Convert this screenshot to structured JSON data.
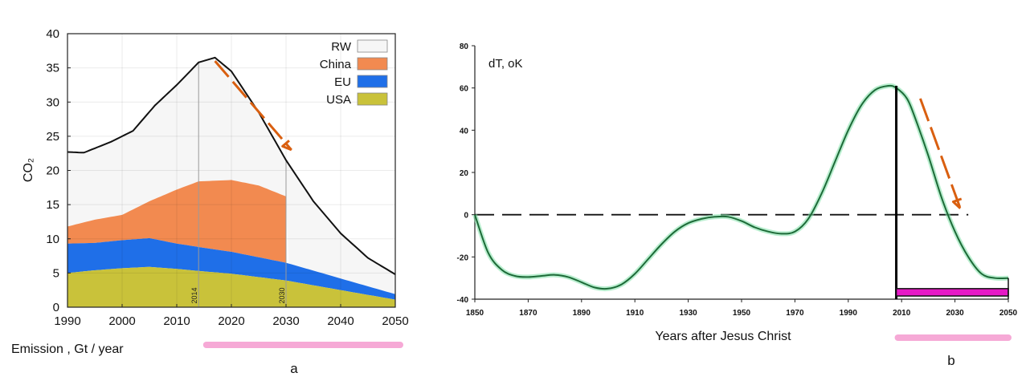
{
  "colors": {
    "rw": "#f6f6f6",
    "china": "#f28a50",
    "eu": "#1f6fe8",
    "usa": "#c9c23a",
    "curve_a": "#111111",
    "curve_b": "#1d6b38",
    "curve_b_glow": "#7fe0a8",
    "arrow": "#d95f10",
    "pink": "#f6a9d6",
    "magenta": "#e619c6"
  },
  "panels": {
    "a": {
      "panel_label": "a",
      "caption": "Emission , Gt / year",
      "ylabel": "CO₂",
      "vmarker_labels": [
        "2014",
        "2030"
      ]
    },
    "b": {
      "panel_label": "b",
      "ylabel": "dT, oK",
      "xlabel": "Years after Jesus Christ"
    }
  },
  "chart_data": [
    {
      "type": "area",
      "title": "",
      "xlabel": "",
      "ylabel": "CO₂",
      "xlim": [
        1990,
        2050
      ],
      "ylim": [
        0,
        40
      ],
      "x_ticks": [
        1990,
        2000,
        2010,
        2020,
        2030,
        2040,
        2050
      ],
      "y_ticks": [
        0,
        5,
        10,
        15,
        20,
        25,
        30,
        35,
        40
      ],
      "grid": true,
      "legend": {
        "placement": "top-right",
        "entries": [
          "RW",
          "China",
          "EU",
          "USA"
        ]
      },
      "vertical_markers": [
        2014,
        2030
      ],
      "series": [
        {
          "name": "USA",
          "x": [
            1990,
            1995,
            2000,
            2005,
            2010,
            2014,
            2020,
            2030,
            2040,
            2050
          ],
          "values": [
            5.0,
            5.4,
            5.7,
            5.9,
            5.6,
            5.3,
            4.9,
            3.9,
            2.5,
            1.1
          ]
        },
        {
          "name": "EU",
          "x": [
            1990,
            1995,
            2000,
            2005,
            2010,
            2014,
            2020,
            2030,
            2040,
            2050
          ],
          "values": [
            9.3,
            9.4,
            9.8,
            10.1,
            9.3,
            8.8,
            8.1,
            6.5,
            4.2,
            1.9
          ]
        },
        {
          "name": "China",
          "x": [
            1990,
            1995,
            2000,
            2005,
            2010,
            2014,
            2020,
            2025,
            2030
          ],
          "values": [
            11.8,
            12.8,
            13.5,
            15.5,
            17.2,
            18.4,
            18.6,
            17.8,
            16.2
          ]
        },
        {
          "name": "RW",
          "x": [
            1990,
            1993,
            1998,
            2002,
            2006,
            2010,
            2014,
            2017,
            2020,
            2025,
            2030,
            2035,
            2040,
            2045,
            2050
          ],
          "values": [
            22.7,
            22.6,
            24.2,
            25.8,
            29.5,
            32.5,
            35.8,
            36.5,
            34.5,
            28.5,
            21.5,
            15.5,
            10.8,
            7.2,
            4.8
          ]
        }
      ],
      "arrow": {
        "from": [
          2017,
          36
        ],
        "to": [
          2031,
          23
        ]
      },
      "highlight_range": [
        2016,
        2050
      ]
    },
    {
      "type": "line",
      "title": "",
      "xlabel": "Years after Jesus Christ",
      "ylabel": "dT, oK",
      "xlim": [
        1850,
        2050
      ],
      "ylim": [
        -40,
        80
      ],
      "x_ticks": [
        1850,
        1870,
        1890,
        1910,
        1930,
        1950,
        1970,
        1990,
        2010,
        2030,
        2050
      ],
      "y_ticks": [
        -40,
        -20,
        0,
        20,
        40,
        60,
        80
      ],
      "grid": false,
      "zero_line": true,
      "vertical_marker": 2008,
      "series": [
        {
          "x": [
            1850,
            1855,
            1860,
            1865,
            1870,
            1875,
            1880,
            1885,
            1890,
            1895,
            1900,
            1905,
            1910,
            1915,
            1920,
            1925,
            1930,
            1935,
            1940,
            1945,
            1950,
            1955,
            1960,
            1965,
            1970,
            1975,
            1980,
            1985,
            1990,
            1995,
            2000,
            2005,
            2008,
            2012,
            2015,
            2020,
            2025,
            2030,
            2035,
            2040,
            2045,
            2050
          ],
          "values": [
            0,
            -18,
            -26,
            -29,
            -29.5,
            -29,
            -28.5,
            -29.5,
            -32,
            -34.5,
            -35,
            -33,
            -28,
            -21,
            -14,
            -8,
            -4,
            -2,
            -1,
            -1,
            -3,
            -6,
            -8,
            -9,
            -8,
            -2,
            10,
            25,
            40,
            52,
            59,
            61,
            60,
            55,
            46,
            28,
            8,
            -8,
            -20,
            -28,
            -30,
            -30
          ]
        }
      ],
      "arrow": {
        "from": [
          2017,
          55
        ],
        "to": [
          2032,
          3
        ]
      },
      "bar": {
        "x_range": [
          2008,
          2050
        ],
        "y_range": [
          -38.5,
          -35
        ]
      },
      "highlight_range": [
        2008,
        2050
      ]
    }
  ]
}
